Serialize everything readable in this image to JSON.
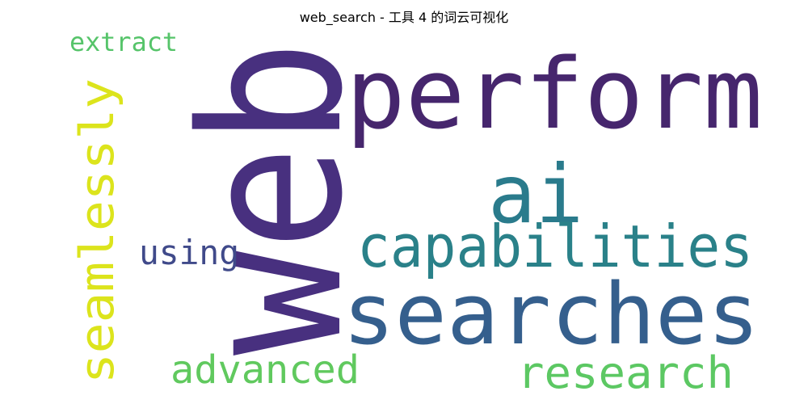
{
  "title": "web_search - 工具 4 的词云可视化",
  "words": [
    {
      "text": "web",
      "color": "#48307f"
    },
    {
      "text": "perform",
      "color": "#46266d"
    },
    {
      "text": "ai",
      "color": "#2a7b8c"
    },
    {
      "text": "capabilities",
      "color": "#2a8189"
    },
    {
      "text": "searches",
      "color": "#355f8d"
    },
    {
      "text": "seamlessly",
      "color": "#dce41c"
    },
    {
      "text": "using",
      "color": "#404a8a"
    },
    {
      "text": "extract",
      "color": "#56c46a"
    },
    {
      "text": "advanced",
      "color": "#60c95e"
    },
    {
      "text": "research",
      "color": "#5cc863"
    }
  ]
}
